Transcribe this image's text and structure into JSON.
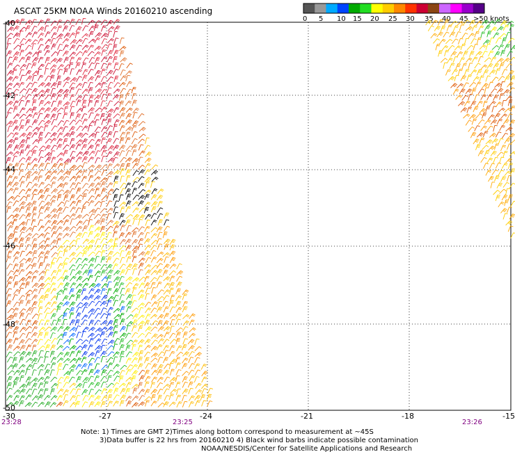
{
  "title": "ASCAT 25KM NOAA Winds 20160210 ascending",
  "legend": {
    "colors": [
      "#555555",
      "#999999",
      "#00aaff",
      "#0044ff",
      "#00aa00",
      "#22dd22",
      "#ffff00",
      "#ffcc00",
      "#ff8800",
      "#ff3300",
      "#cc0033",
      "#8b4513",
      "#cc66ff",
      "#ff00ff",
      "#9900cc",
      "#550088"
    ],
    "labels": [
      "0",
      "5",
      "10",
      "15",
      "20",
      "25",
      "30",
      "35",
      "40",
      "45",
      ">50 knots"
    ]
  },
  "axes": {
    "lat_labels": [
      "-40",
      "-42",
      "-44",
      "-46",
      "-48",
      "-50"
    ],
    "lon_labels": [
      "-30",
      "-27",
      "-24",
      "-21",
      "-18",
      "-15"
    ],
    "time_labels": [
      "23:28",
      "23:25",
      "23:26"
    ]
  },
  "notes": [
    "Note: 1) Times are GMT 2)Times along bottom correspond to measurement at ~45S",
    "3)Data buffer is 22 hrs from 20160210 4) Black wind barbs indicate possible contamination",
    "NOAA/NESDIS/Center for Satellite Applications and Research"
  ]
}
